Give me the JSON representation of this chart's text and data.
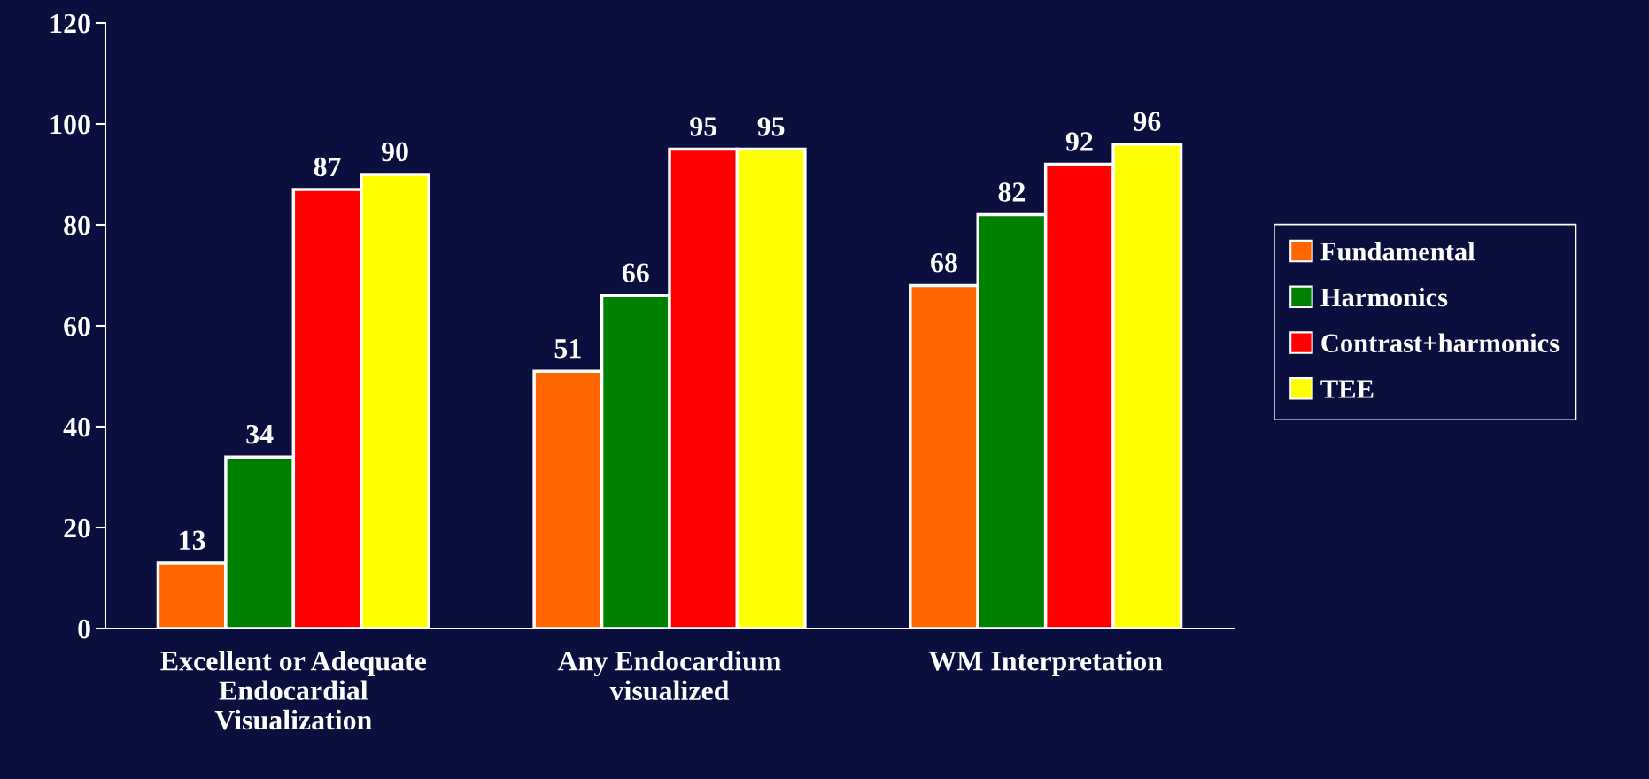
{
  "chart_data": {
    "type": "bar",
    "categories": [
      "Excellent or Adequate\nEndocardial\nVisualization",
      "Any Endocardium\nvisualized",
      "WM Interpretation"
    ],
    "series": [
      {
        "name": "Fundamental",
        "color": "#ff6600",
        "values": [
          13,
          51,
          68
        ]
      },
      {
        "name": "Harmonics",
        "color": "#008000",
        "values": [
          34,
          66,
          82
        ]
      },
      {
        "name": "Contrast+harmonics",
        "color": "#ff0000",
        "values": [
          87,
          95,
          92
        ]
      },
      {
        "name": "TEE",
        "color": "#ffff00",
        "values": [
          90,
          95,
          96
        ]
      }
    ],
    "ylim": [
      0,
      120
    ],
    "yticks": [
      0,
      20,
      40,
      60,
      80,
      100,
      120
    ],
    "data_labels": true,
    "grid": false,
    "legend": "right"
  }
}
